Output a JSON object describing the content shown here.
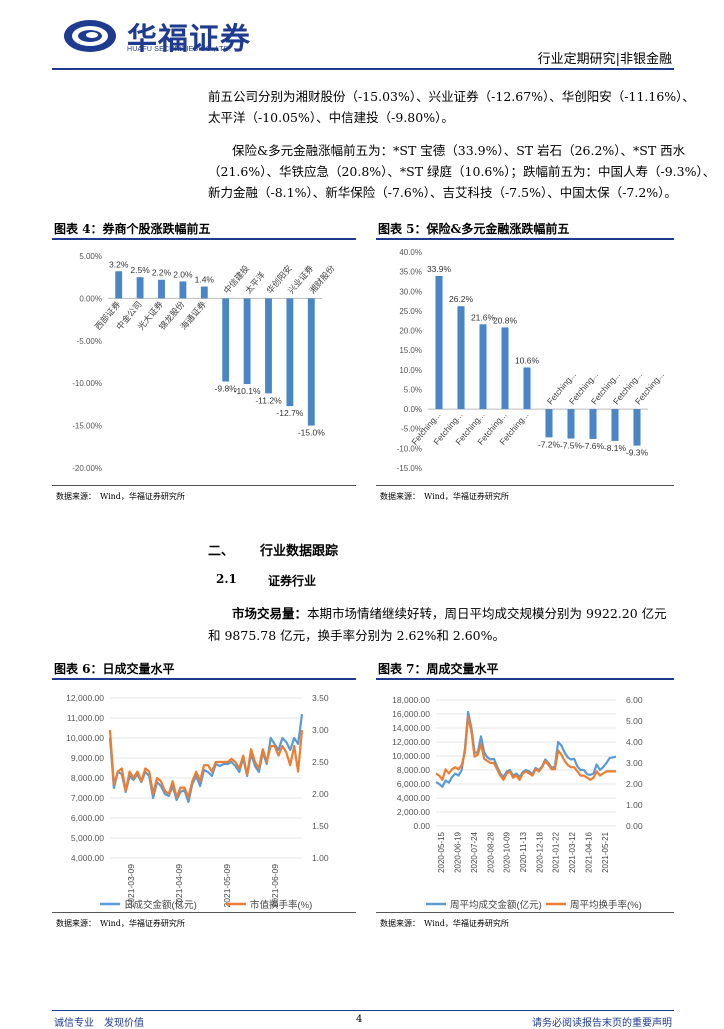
{
  "header": {
    "logo_cn": "华福证券",
    "logo_en": "HUAFU SECURITIES CO.,LTD.",
    "right_text": "行业定期研究|非银金融"
  },
  "paragraphs": {
    "p1_line1": "前五公司分别为湘财股份（-15.03%）、兴业证券（-12.67%）、华创阳安（-11.16%）、",
    "p1_line2": "太平洋（-10.05%）、中信建投（-9.80%）。",
    "p2_line1": "保险&多元金融涨幅前五为：*ST 宝德（33.9%）、ST 岩石（26.2%）、*ST 西水",
    "p2_line2": "（21.6%）、华铁应急（20.8%）、*ST 绿庭（10.6%）；跌幅前五为：中国人寿（-9.3%）、",
    "p2_line3": "新力金融（-8.1%）、新华保险（-7.6%）、吉艾科技（-7.5%）、中国太保（-7.2%）。"
  },
  "figures": {
    "fig4_title": "图表 4：券商个股涨跌幅前五",
    "fig5_title": "图表 5：保险&多元金融涨跌幅前五",
    "fig6_title": "图表 6：日成交量水平",
    "fig7_title": "图表 7：周成交量水平",
    "source": "数据来源：　Wind，华福证券研究所"
  },
  "section": {
    "sec2_num": "二、",
    "sec2_title": "行业数据跟踪",
    "sub_num": "2.1",
    "sub_title": "证券行业",
    "market_label": "市场交易量：",
    "market_line1": "本期市场情绪继续好转，周日平均成交规模分别为 9922.20 亿元",
    "market_line2": "和 9875.78 亿元，换手率分别为 2.62%和 2.60%。"
  },
  "footer": {
    "left": "诚信专业　发现价值",
    "page": "4",
    "right": "请务必阅读报告末页的重要声明"
  },
  "colors": {
    "brand": "#1f3b8f",
    "bar": "#4a86c5",
    "line_blue": "#5b9bd5",
    "line_orange": "#ed7d31"
  },
  "chart_data": [
    {
      "type": "bar",
      "title": "图表 4：券商个股涨跌幅前五",
      "categories": [
        "西部证券",
        "中金公司",
        "光大证券",
        "锦龙股份",
        "海通证券",
        "中信建投",
        "太平洋",
        "华创阳安",
        "兴业证券",
        "湘财股份"
      ],
      "values": [
        3.2,
        2.5,
        2.2,
        2.0,
        1.4,
        -9.8,
        -10.1,
        -11.2,
        -12.7,
        -15.0
      ],
      "value_labels": [
        "3.2%",
        "2.5%",
        "2.2%",
        "2.0%",
        "1.4%",
        "-9.8%",
        "-10.1%",
        "-11.2%",
        "-12.7%",
        "-15.0%"
      ],
      "yticks": [
        "5.00%",
        "0.00%",
        "-5.00%",
        "-10.00%",
        "-15.00%",
        "-20.00%"
      ],
      "ylim": [
        -20,
        5
      ]
    },
    {
      "type": "bar",
      "title": "图表 5：保险&多元金融涨跌幅前五",
      "categories": [
        "Fetching...",
        "Fetching...",
        "Fetching...",
        "Fetching...",
        "Fetching...",
        "Fetching...",
        "Fetching...",
        "Fetching...",
        "Fetching...",
        "Fetching..."
      ],
      "values": [
        33.9,
        26.2,
        21.6,
        20.8,
        10.6,
        -7.2,
        -7.5,
        -7.6,
        -8.1,
        -9.3
      ],
      "value_labels": [
        "33.9%",
        "26.2%",
        "21.6%",
        "20.8%",
        "10.6%",
        "-7.2%",
        "-7.5%",
        "-7.6%",
        "-8.1%",
        "-9.3%"
      ],
      "yticks": [
        "40.0%",
        "35.0%",
        "30.0%",
        "25.0%",
        "20.0%",
        "15.0%",
        "10.0%",
        "5.0%",
        "0.0%",
        "-5.0%",
        "-10.0%",
        "-15.0%"
      ],
      "ylim": [
        -15,
        40
      ]
    },
    {
      "type": "line",
      "title": "图表 6：日成交量水平",
      "x_ticks": [
        "2021-03-09",
        "2021-04-09",
        "2021-05-09",
        "2021-06-09"
      ],
      "y_left_ticks": [
        "12,000.00",
        "11,000.00",
        "10,000.00",
        "9,000.00",
        "8,000.00",
        "7,000.00",
        "6,000.00",
        "5,000.00",
        "4,000.00"
      ],
      "y_right_ticks": [
        "3.50",
        "3.00",
        "2.50",
        "2.00",
        "1.50",
        "1.00"
      ],
      "ylim_left": [
        4000,
        12000
      ],
      "ylim_right": [
        1.0,
        3.5
      ],
      "series": [
        {
          "name": "日成交金额(亿元)",
          "axis": "left",
          "values": [
            10000,
            7500,
            8300,
            8200,
            7300,
            8100,
            7900,
            8200,
            7800,
            8300,
            8100,
            7000,
            7800,
            7600,
            7200,
            7100,
            7600,
            6900,
            7300,
            7400,
            6800,
            7700,
            8100,
            7600,
            8400,
            8300,
            8100,
            8700,
            8600,
            8700,
            8700,
            8800,
            8600,
            8300,
            9000,
            8100,
            9200,
            8600,
            8300,
            9300,
            8700,
            10000,
            9700,
            9400,
            10000,
            9800,
            9400,
            10000,
            9700,
            11200
          ]
        },
        {
          "name": "市值换手率(%)",
          "axis": "right",
          "values": [
            3.0,
            2.15,
            2.35,
            2.4,
            2.05,
            2.35,
            2.25,
            2.35,
            2.2,
            2.4,
            2.35,
            2.0,
            2.25,
            2.2,
            2.05,
            2.0,
            2.2,
            1.95,
            2.1,
            2.1,
            1.95,
            2.2,
            2.35,
            2.2,
            2.45,
            2.45,
            2.35,
            2.5,
            2.5,
            2.5,
            2.5,
            2.55,
            2.5,
            2.4,
            2.6,
            2.3,
            2.7,
            2.5,
            2.4,
            2.7,
            2.5,
            2.75,
            2.75,
            2.6,
            2.75,
            2.65,
            2.45,
            2.75,
            2.35,
            3.0
          ]
        }
      ]
    },
    {
      "type": "line",
      "title": "图表 7：周成交量水平",
      "x_ticks": [
        "2020-05-15",
        "2020-06-19",
        "2020-07-24",
        "2020-08-28",
        "2020-10-09",
        "2020-11-13",
        "2020-12-18",
        "2021-01-22",
        "2021-03-12",
        "2021-04-16",
        "2021-05-21"
      ],
      "y_left_ticks": [
        "18,000.00",
        "16,000.00",
        "14,000.00",
        "12,000.00",
        "10,000.00",
        "8,000.00",
        "6,000.00",
        "4,000.00",
        "2,000.00",
        "0.00"
      ],
      "y_right_ticks": [
        "6.00",
        "5.00",
        "4.00",
        "3.00",
        "2.00",
        "1.00",
        "0.00"
      ],
      "ylim_left": [
        0,
        18000
      ],
      "ylim_right": [
        0,
        6
      ],
      "series": [
        {
          "name": "周平均成交金额(亿元)",
          "axis": "left",
          "values": [
            6300,
            6000,
            5600,
            6500,
            6200,
            7000,
            7500,
            7200,
            8000,
            11000,
            16300,
            14000,
            10500,
            10500,
            12800,
            10500,
            9800,
            9500,
            9600,
            8500,
            7500,
            7000,
            7800,
            8000,
            7200,
            7500,
            7000,
            7700,
            8000,
            7800,
            7400,
            8300,
            8000,
            8500,
            9500,
            9000,
            8300,
            8500,
            12000,
            11500,
            10500,
            9800,
            9500,
            9600,
            8500,
            8000,
            8000,
            7400,
            7300,
            7500,
            8800,
            8000,
            8400,
            9000,
            9700,
            9800,
            9900
          ]
        },
        {
          "name": "周平均换手率(%)",
          "axis": "right",
          "values": [
            2.5,
            2.4,
            2.2,
            2.7,
            2.5,
            2.7,
            2.8,
            2.7,
            2.9,
            3.5,
            5.2,
            4.5,
            3.3,
            3.4,
            3.9,
            3.2,
            3.1,
            3.0,
            3.0,
            2.7,
            2.4,
            2.2,
            2.5,
            2.6,
            2.3,
            2.4,
            2.2,
            2.5,
            2.6,
            2.5,
            2.4,
            2.7,
            2.6,
            2.8,
            3.1,
            2.9,
            2.7,
            2.7,
            3.6,
            3.4,
            3.1,
            2.9,
            2.8,
            2.8,
            2.6,
            2.4,
            2.4,
            2.3,
            2.2,
            2.3,
            2.6,
            2.4,
            2.5,
            2.6,
            2.6,
            2.6,
            2.6
          ]
        }
      ]
    }
  ]
}
